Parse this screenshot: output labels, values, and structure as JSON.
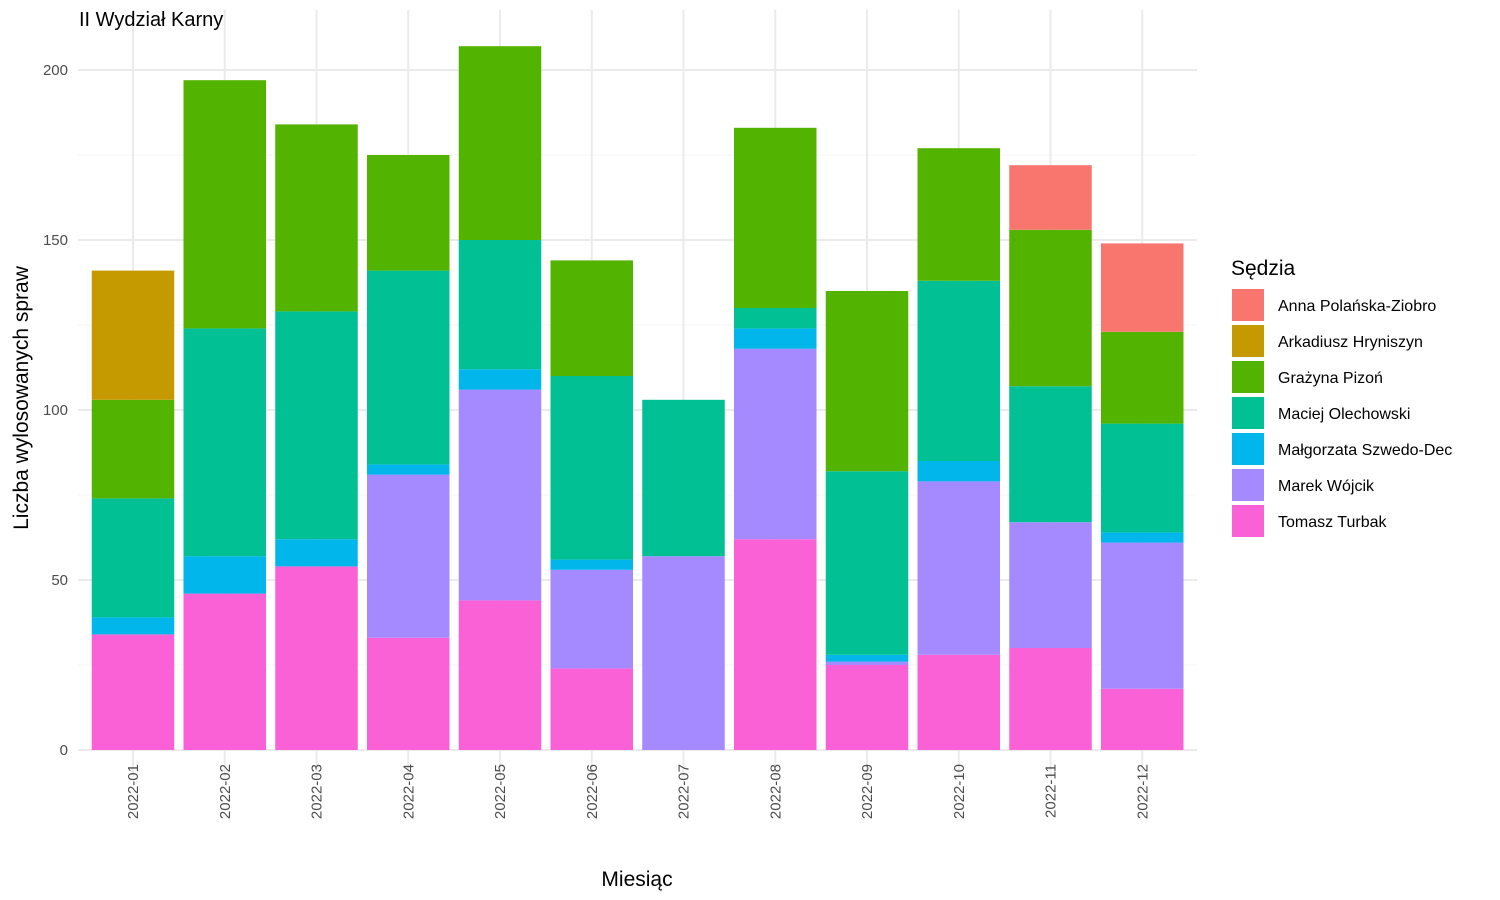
{
  "chart_data": {
    "type": "bar",
    "stacked": true,
    "title": "II Wydział Karny",
    "xlabel": "Miesiąc",
    "ylabel": "Liczba wylosowanych spraw",
    "ylim": [
      0,
      210
    ],
    "yticks": [
      0,
      50,
      100,
      150,
      200
    ],
    "grid": true,
    "legend_title": "Sędzia",
    "legend_position": "right",
    "categories": [
      "2022-01",
      "2022-02",
      "2022-03",
      "2022-04",
      "2022-05",
      "2022-06",
      "2022-07",
      "2022-08",
      "2022-09",
      "2022-10",
      "2022-11",
      "2022-12"
    ],
    "stack_order_bottom_to_top": [
      "Tomasz Turbak",
      "Marek Wójcik",
      "Małgorzata Szwedo-Dec",
      "Maciej Olechowski",
      "Grażyna Pizoń",
      "Arkadiusz Hryniszyn",
      "Anna Polańska-Ziobro"
    ],
    "series": [
      {
        "name": "Anna Polańska-Ziobro",
        "color": "#F8766D",
        "values": [
          0,
          0,
          0,
          0,
          0,
          0,
          0,
          0,
          0,
          0,
          19,
          26
        ]
      },
      {
        "name": "Arkadiusz Hryniszyn",
        "color": "#C49A00",
        "values": [
          38,
          0,
          0,
          0,
          0,
          0,
          0,
          0,
          0,
          0,
          0,
          0
        ]
      },
      {
        "name": "Grażyna Pizoń",
        "color": "#53B400",
        "values": [
          29,
          73,
          55,
          34,
          57,
          34,
          0,
          53,
          53,
          39,
          46,
          27
        ]
      },
      {
        "name": "Maciej Olechowski",
        "color": "#00C094",
        "values": [
          35,
          67,
          67,
          57,
          38,
          54,
          46,
          6,
          54,
          53,
          40,
          32
        ]
      },
      {
        "name": "Małgorzata Szwedo-Dec",
        "color": "#00B6EB",
        "values": [
          5,
          11,
          8,
          3,
          6,
          3,
          0,
          6,
          2,
          6,
          0,
          3
        ]
      },
      {
        "name": "Marek Wójcik",
        "color": "#A58AFF",
        "values": [
          0,
          0,
          0,
          48,
          62,
          29,
          57,
          56,
          1,
          51,
          37,
          43
        ]
      },
      {
        "name": "Tomasz Turbak",
        "color": "#FB61D7",
        "values": [
          34,
          46,
          54,
          33,
          44,
          24,
          0,
          62,
          25,
          28,
          30,
          18
        ]
      }
    ]
  }
}
